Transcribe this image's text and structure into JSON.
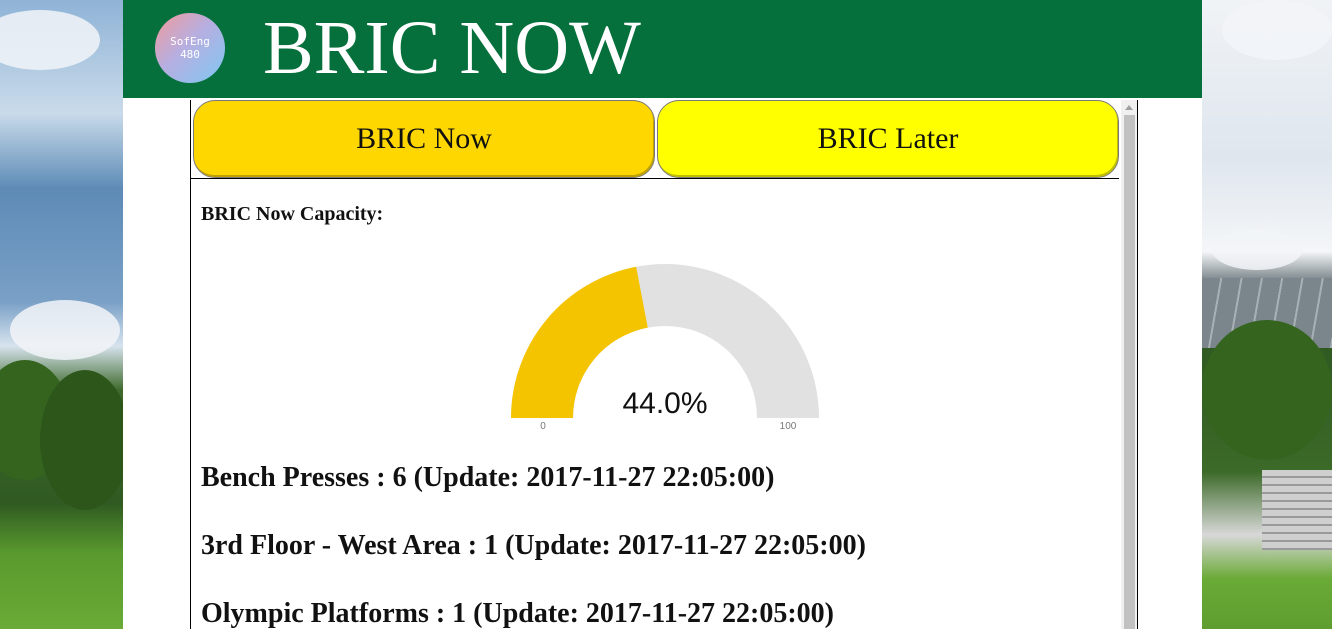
{
  "header": {
    "logo_line1": "SofEng",
    "logo_line2": "480",
    "title": "BRIC NOW"
  },
  "tabs": [
    {
      "label": "BRIC Now",
      "color": "#ffd700",
      "active": true
    },
    {
      "label": "BRIC Later",
      "color": "#ffff00",
      "active": false
    }
  ],
  "capacity": {
    "label": "BRIC Now Capacity:",
    "value_text": "44.0%",
    "percent": 44.0,
    "min": "0",
    "max": "100",
    "fill_color": "#f5c400",
    "track_color": "#e1e1e1"
  },
  "stats": [
    {
      "text": "Bench Presses : 6 (Update: 2017-11-27 22:05:00)"
    },
    {
      "text": "3rd Floor - West Area : 1 (Update: 2017-11-27 22:05:00)"
    },
    {
      "text": "Olympic Platforms : 1 (Update: 2017-11-27 22:05:00)"
    }
  ],
  "colors": {
    "header_bg": "#06703c",
    "header_text": "#ffffff"
  }
}
